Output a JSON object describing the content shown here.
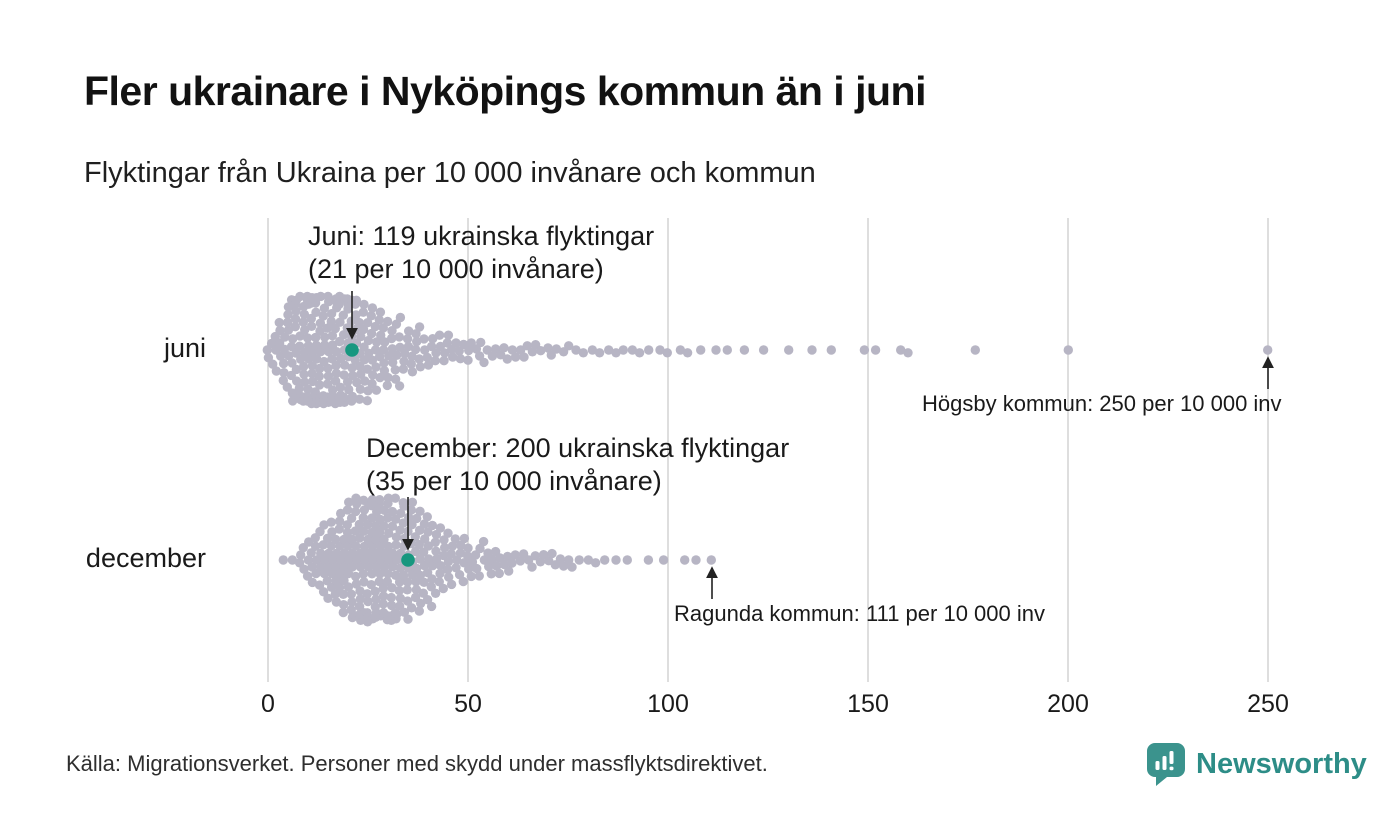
{
  "header": {
    "title": "Fler ukrainare i Nyköpings kommun än i juni",
    "subtitle": "Flyktingar från Ukraina per 10 000 invånare och kommun"
  },
  "footer": {
    "source": "Källa: Migrationsverket. Personer med skydd under massflyktsdirektivet.",
    "brand_name": "Newsworthy"
  },
  "colors": {
    "dot": "#b7b5c4",
    "highlight": "#17977f",
    "grid": "#cccccc",
    "axis_text": "#1a1a1a",
    "arrow": "#222222",
    "brand_teal_icon": "#3b938d",
    "brand_teal_text": "#2d8d87"
  },
  "chart_data": {
    "type": "beeswarm",
    "title": "Fler ukrainare i Nyköpings kommun än i juni",
    "subtitle": "Flyktingar från Ukraina per 10 000 invånare och kommun",
    "xlabel": "per 10 000 invånare",
    "x_ticks": [
      0,
      50,
      100,
      150,
      200,
      250
    ],
    "x_range": [
      0,
      260
    ],
    "grid": true,
    "rows": [
      {
        "label": "juni",
        "highlight": {
          "municipality": "Nyköpings kommun",
          "refugees": 119,
          "per_10000": 21
        },
        "max_value": 250,
        "values": [
          0,
          0,
          1,
          1,
          2,
          2,
          2,
          3,
          3,
          3,
          3,
          4,
          4,
          4,
          4,
          4,
          5,
          5,
          5,
          5,
          5,
          5,
          6,
          6,
          6,
          6,
          6,
          6,
          6,
          7,
          7,
          7,
          7,
          7,
          7,
          7,
          7,
          8,
          8,
          8,
          8,
          8,
          8,
          8,
          8,
          8,
          9,
          9,
          9,
          9,
          9,
          9,
          9,
          9,
          9,
          9,
          10,
          10,
          10,
          10,
          10,
          10,
          10,
          10,
          10,
          10,
          11,
          11,
          11,
          11,
          11,
          11,
          11,
          11,
          11,
          11,
          12,
          12,
          12,
          12,
          12,
          12,
          12,
          12,
          12,
          12,
          12,
          13,
          13,
          13,
          13,
          13,
          13,
          13,
          13,
          13,
          13,
          13,
          14,
          14,
          14,
          14,
          14,
          14,
          14,
          14,
          14,
          14,
          15,
          15,
          15,
          15,
          15,
          15,
          15,
          15,
          15,
          15,
          16,
          16,
          16,
          16,
          16,
          16,
          16,
          16,
          16,
          16,
          17,
          17,
          17,
          17,
          17,
          17,
          17,
          17,
          17,
          18,
          18,
          18,
          18,
          18,
          18,
          18,
          18,
          18,
          19,
          19,
          19,
          19,
          19,
          19,
          19,
          19,
          20,
          20,
          20,
          20,
          20,
          20,
          20,
          20,
          21,
          21,
          21,
          21,
          21,
          21,
          21,
          21,
          22,
          22,
          22,
          22,
          22,
          22,
          22,
          23,
          23,
          23,
          23,
          23,
          23,
          23,
          24,
          24,
          24,
          24,
          24,
          24,
          25,
          25,
          25,
          25,
          25,
          25,
          26,
          26,
          26,
          26,
          26,
          26,
          27,
          27,
          27,
          27,
          27,
          28,
          28,
          28,
          28,
          28,
          29,
          29,
          29,
          29,
          29,
          30,
          30,
          30,
          30,
          31,
          31,
          31,
          31,
          32,
          32,
          32,
          32,
          33,
          33,
          33,
          33,
          34,
          34,
          34,
          35,
          35,
          35,
          36,
          36,
          36,
          37,
          37,
          37,
          38,
          38,
          38,
          39,
          39,
          40,
          40,
          41,
          41,
          42,
          42,
          43,
          43,
          44,
          44,
          45,
          45,
          46,
          46,
          47,
          48,
          48,
          49,
          50,
          50,
          51,
          52,
          53,
          53,
          54,
          55,
          56,
          57,
          58,
          59,
          60,
          61,
          62,
          63,
          64,
          65,
          66,
          67,
          68,
          70,
          71,
          72,
          74,
          75,
          77,
          79,
          81,
          83,
          85,
          87,
          89,
          91,
          93,
          95,
          98,
          100,
          103,
          105,
          108,
          112,
          115,
          119,
          124,
          130,
          136,
          141,
          149,
          152,
          158,
          160,
          177,
          200,
          250
        ]
      },
      {
        "label": "december",
        "highlight": {
          "municipality": "Nyköpings kommun",
          "refugees": 200,
          "per_10000": 35
        },
        "max_value": 111,
        "values": [
          4,
          6,
          8,
          8,
          9,
          9,
          10,
          10,
          10,
          11,
          11,
          11,
          12,
          12,
          12,
          12,
          13,
          13,
          13,
          13,
          14,
          14,
          14,
          14,
          14,
          15,
          15,
          15,
          15,
          15,
          16,
          16,
          16,
          16,
          16,
          16,
          17,
          17,
          17,
          17,
          17,
          17,
          18,
          18,
          18,
          18,
          18,
          18,
          18,
          19,
          19,
          19,
          19,
          19,
          19,
          19,
          20,
          20,
          20,
          20,
          20,
          20,
          20,
          20,
          21,
          21,
          21,
          21,
          21,
          21,
          21,
          21,
          22,
          22,
          22,
          22,
          22,
          22,
          22,
          22,
          22,
          23,
          23,
          23,
          23,
          23,
          23,
          23,
          23,
          23,
          24,
          24,
          24,
          24,
          24,
          24,
          24,
          24,
          24,
          25,
          25,
          25,
          25,
          25,
          25,
          25,
          25,
          25,
          25,
          26,
          26,
          26,
          26,
          26,
          26,
          26,
          26,
          26,
          26,
          27,
          27,
          27,
          27,
          27,
          27,
          27,
          27,
          27,
          27,
          28,
          28,
          28,
          28,
          28,
          28,
          28,
          28,
          28,
          28,
          29,
          29,
          29,
          29,
          29,
          29,
          29,
          29,
          29,
          30,
          30,
          30,
          30,
          30,
          30,
          30,
          30,
          30,
          30,
          31,
          31,
          31,
          31,
          31,
          31,
          31,
          31,
          31,
          32,
          32,
          32,
          32,
          32,
          32,
          32,
          32,
          32,
          33,
          33,
          33,
          33,
          33,
          33,
          33,
          33,
          34,
          34,
          34,
          34,
          34,
          34,
          34,
          34,
          35,
          35,
          35,
          35,
          35,
          35,
          35,
          35,
          36,
          36,
          36,
          36,
          36,
          36,
          36,
          37,
          37,
          37,
          37,
          37,
          37,
          37,
          38,
          38,
          38,
          38,
          38,
          38,
          38,
          39,
          39,
          39,
          39,
          39,
          39,
          40,
          40,
          40,
          40,
          40,
          40,
          41,
          41,
          41,
          41,
          41,
          42,
          42,
          42,
          42,
          42,
          43,
          43,
          43,
          43,
          44,
          44,
          44,
          44,
          45,
          45,
          45,
          45,
          46,
          46,
          46,
          47,
          47,
          47,
          48,
          48,
          48,
          49,
          49,
          49,
          50,
          50,
          50,
          51,
          51,
          52,
          52,
          53,
          53,
          54,
          54,
          55,
          55,
          56,
          56,
          57,
          57,
          58,
          58,
          59,
          60,
          60,
          61,
          62,
          63,
          64,
          65,
          66,
          67,
          68,
          69,
          70,
          71,
          72,
          73,
          74,
          75,
          76,
          78,
          80,
          82,
          84,
          87,
          90,
          95,
          99,
          104,
          107,
          111
        ]
      }
    ],
    "annotations": [
      {
        "id": "juni-highlight",
        "row": 0,
        "value": 21,
        "arrow": "down",
        "lines": [
          "Juni: 119 ukrainska flyktingar",
          "(21 per 10 000 invånare)"
        ]
      },
      {
        "id": "december-highlight",
        "row": 1,
        "value": 35,
        "arrow": "down",
        "lines": [
          "December: 200 ukrainska flyktingar",
          "(35 per 10 000 invånare)"
        ]
      },
      {
        "id": "hogsby",
        "row": 0,
        "value": 250,
        "arrow": "up",
        "lines": [
          "Högsby kommun: 250 per 10 000 inv"
        ]
      },
      {
        "id": "ragunda",
        "row": 1,
        "value": 111,
        "arrow": "up",
        "lines": [
          "Ragunda kommun: 111 per 10 000 inv"
        ]
      }
    ]
  }
}
